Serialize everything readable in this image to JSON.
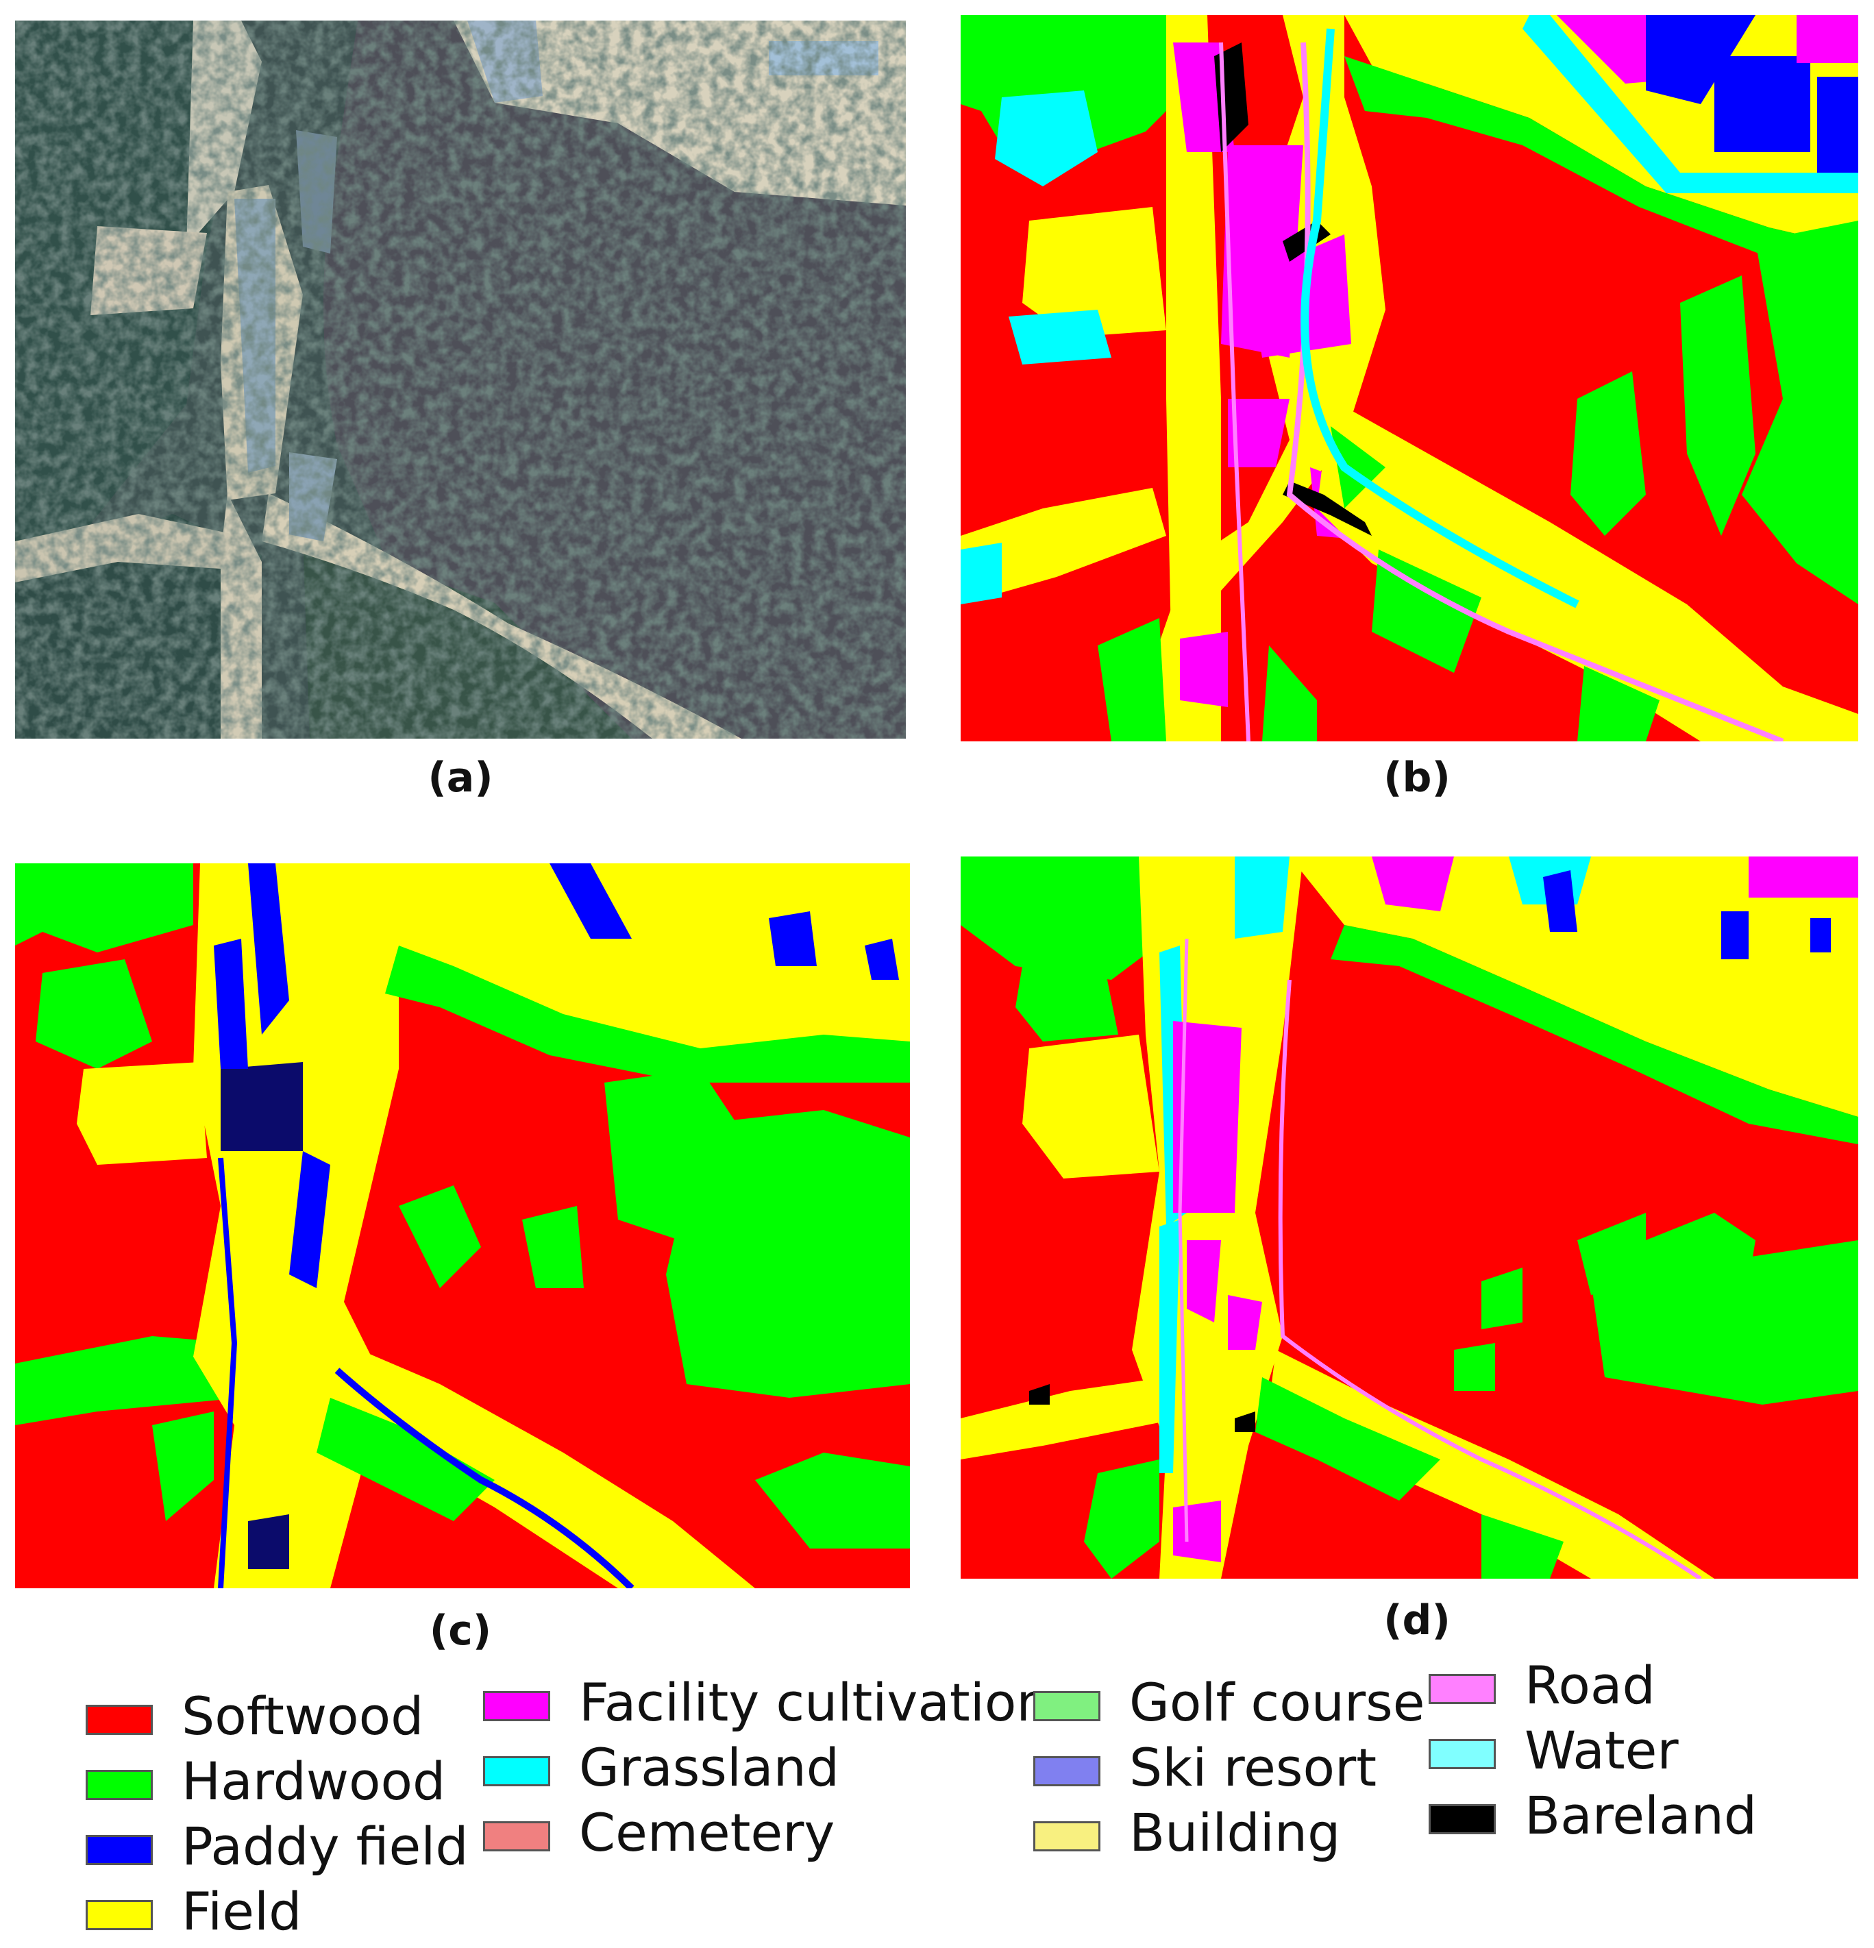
{
  "panels": [
    {
      "id": "a",
      "caption": "(a)",
      "kind": "satellite image"
    },
    {
      "id": "b",
      "caption": "(b)",
      "kind": "reference land-cover map"
    },
    {
      "id": "c",
      "caption": "(c)",
      "kind": "classification map"
    },
    {
      "id": "d",
      "caption": "(d)",
      "kind": "classification map"
    }
  ],
  "legend": [
    {
      "label": "Softwood",
      "color": "#FF0000"
    },
    {
      "label": "Hardwood",
      "color": "#00FF00"
    },
    {
      "label": "Paddy field",
      "color": "#0000FF"
    },
    {
      "label": "Field",
      "color": "#FFFF00"
    },
    {
      "label": "Facility cultivation",
      "color": "#FF00FF"
    },
    {
      "label": "Grassland",
      "color": "#00FFFF"
    },
    {
      "label": "Cemetery",
      "color": "#F08080"
    },
    {
      "label": "Golf course",
      "color": "#80F080"
    },
    {
      "label": "Ski resort",
      "color": "#8080F0"
    },
    {
      "label": "Building",
      "color": "#F8F080"
    },
    {
      "label": "Road",
      "color": "#FF80FF"
    },
    {
      "label": "Water",
      "color": "#80FFFF"
    },
    {
      "label": "Bareland",
      "color": "#000000"
    }
  ]
}
